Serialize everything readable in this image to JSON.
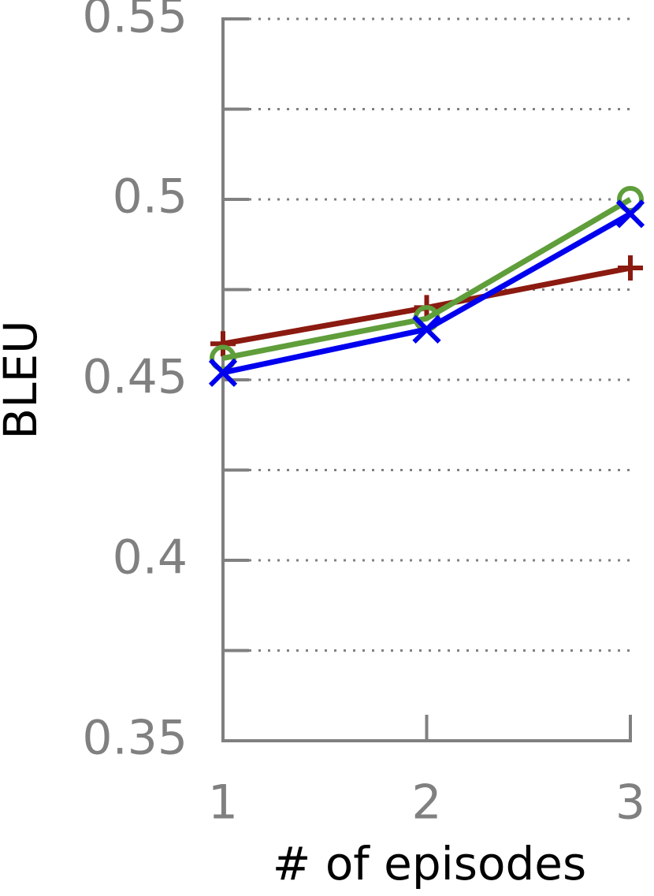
{
  "chart_data": {
    "type": "line",
    "x_label": "# of episodes",
    "y_label": "BLEU",
    "x": [
      1,
      2,
      3
    ],
    "xlim": [
      1,
      3
    ],
    "xticks": [
      1,
      2,
      3
    ],
    "ylim": [
      0.35,
      0.55
    ],
    "yticks": [
      0.35,
      0.4,
      0.45,
      0.5,
      0.55
    ],
    "yminorticks": [
      0.375,
      0.425,
      0.475,
      0.525
    ],
    "grid": true,
    "series": [
      {
        "color": "#8b1a10",
        "marker": "plus",
        "values": [
          0.46,
          0.47,
          0.481
        ]
      },
      {
        "color": "#5f9e3a",
        "marker": "circle",
        "values": [
          0.456,
          0.467,
          0.5
        ]
      },
      {
        "color": "#0000ee",
        "marker": "cross",
        "values": [
          0.452,
          0.464,
          0.496
        ]
      }
    ]
  }
}
